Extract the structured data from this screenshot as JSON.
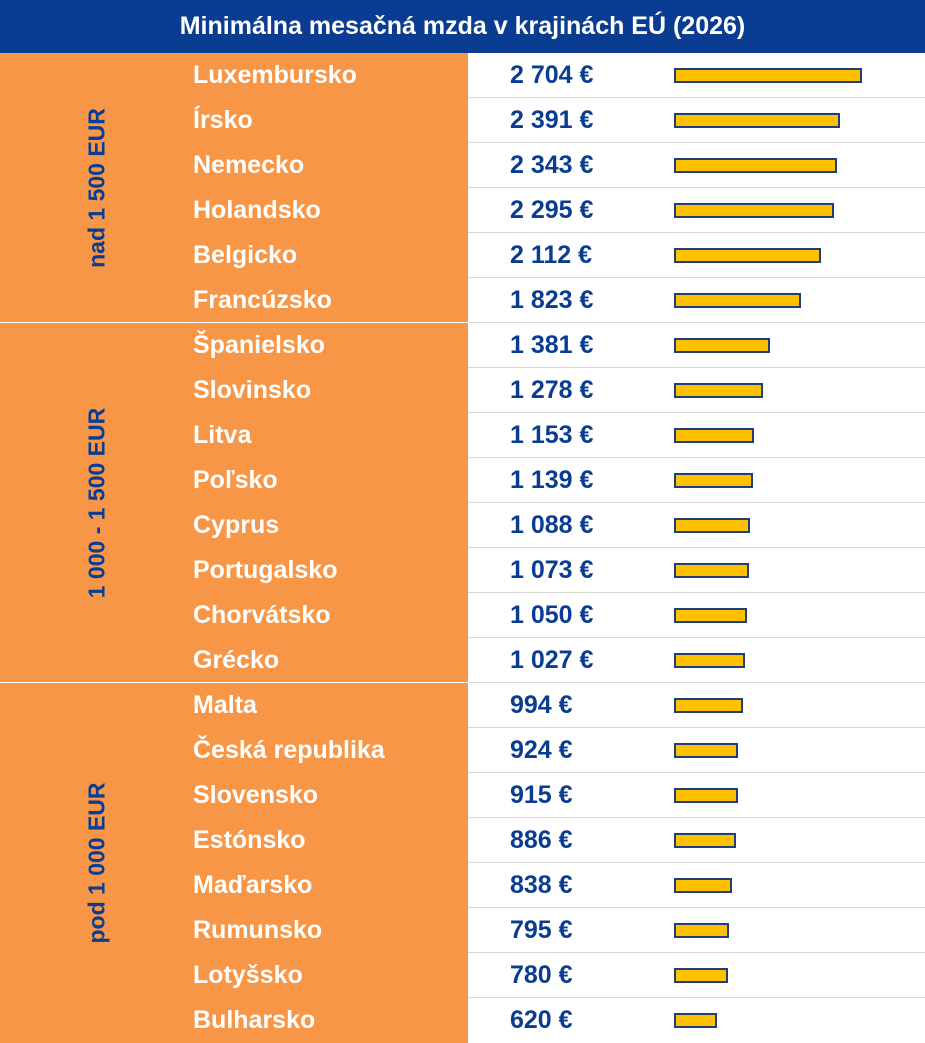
{
  "title": "Minimálna mesačná mzda v krajinách EÚ (2026)",
  "colors": {
    "header_bg": "#0a3d91",
    "group_bg": "#f79646",
    "bar_fill": "#ffc000",
    "bar_border": "#1f3f7a",
    "value_text": "#0a3d91"
  },
  "groups": [
    {
      "label": "nad 1 500 EUR",
      "rows": 6
    },
    {
      "label": "1 000 - 1 500 EUR",
      "rows": 8
    },
    {
      "label": "pod 1 000 EUR",
      "rows": 8
    }
  ],
  "chart_data": {
    "type": "bar",
    "orientation": "horizontal",
    "title": "Minimálna mesačná mzda v krajinách EÚ (2026)",
    "categories": [
      "Luxembursko",
      "Írsko",
      "Nemecko",
      "Holandsko",
      "Belgicko",
      "Francúzsko",
      "Španielsko",
      "Slovinsko",
      "Litva",
      "Poľsko",
      "Cyprus",
      "Portugalsko",
      "Chorvátsko",
      "Grécko",
      "Malta",
      "Česká republika",
      "Slovensko",
      "Estónsko",
      "Maďarsko",
      "Rumunsko",
      "Lotyšsko",
      "Bulharsko"
    ],
    "values": [
      2704,
      2391,
      2343,
      2295,
      2112,
      1823,
      1381,
      1278,
      1153,
      1139,
      1088,
      1073,
      1050,
      1027,
      994,
      924,
      915,
      886,
      838,
      795,
      780,
      620
    ],
    "value_labels": [
      "2 704 €",
      "2 391 €",
      "2 343 €",
      "2 295 €",
      "2 112 €",
      "1 823 €",
      "1 381 €",
      "1 278 €",
      "1 153 €",
      "1 139 €",
      "1 088 €",
      "1 073 €",
      "1 050 €",
      "1 027 €",
      "994 €",
      "924 €",
      "915 €",
      "886 €",
      "838 €",
      "795 €",
      "780 €",
      "620 €"
    ],
    "unit": "€",
    "xlim": [
      0,
      2704
    ]
  }
}
